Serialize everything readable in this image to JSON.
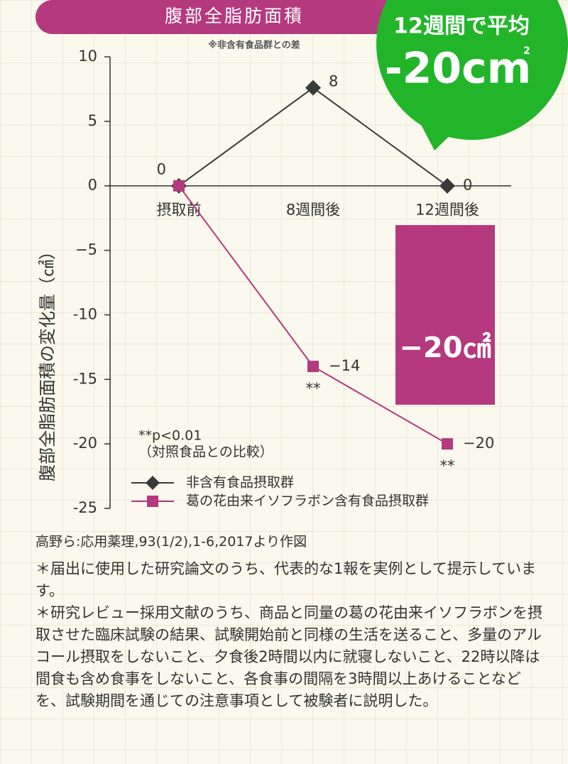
{
  "chart_data": {
    "type": "line",
    "title": "腹部全脂肪面積",
    "subtitle": "※非含有食品群との差",
    "y_label": "腹部全脂肪面積の変化量（㎠）",
    "categories": [
      "摂取前",
      "8週間後",
      "12週間後"
    ],
    "series": [
      {
        "name": "非含有食品摂取群",
        "color": "#3a3a3a",
        "marker": "diamond",
        "values": [
          0,
          7.6,
          0
        ],
        "value_labels": [
          "0",
          "8",
          "0"
        ]
      },
      {
        "name": "葛の花由来イソフラボン含有食品摂取群",
        "color": "#b5397f",
        "marker": "square",
        "values": [
          0,
          -14,
          -20
        ],
        "value_labels": [
          "0",
          "−14",
          "−20"
        ]
      }
    ],
    "significance": [
      null,
      "**",
      "**"
    ],
    "note_lines": [
      "**p<0.01",
      "（対照食品との比較）"
    ],
    "ylim": [
      -25,
      10
    ],
    "yticks": [
      10,
      5,
      0,
      {
        "value": -5,
        "label": "−5"
      },
      -10,
      -15,
      -20,
      -25
    ],
    "highlight_box": {
      "text": "−20㎠",
      "color": "#b5397f"
    }
  },
  "badge": {
    "line1": "12週間で平均",
    "value": "-20cm",
    "sup": "2",
    "color": "#22b52a"
  },
  "source": "高野ら:応用薬理,93(1/2),1-6,2017より作図",
  "notes": [
    "＊届出に使用した研究論文のうち、代表的な1報を実例として提示しています。",
    "＊研究レビュー採用文献のうち、商品と同量の葛の花由来イソフラボンを摂取させた臨床試験の結果、試験開始前と同様の生活を送ること、多量のアルコール摂取をしないこと、夕食後2時間以内に就寝しないこと、22時以降は間食も含め食事をしないこと、各食事の間隔を3時間以上あけることなどを、試験期間を通じての注意事項として被験者に説明した。"
  ]
}
